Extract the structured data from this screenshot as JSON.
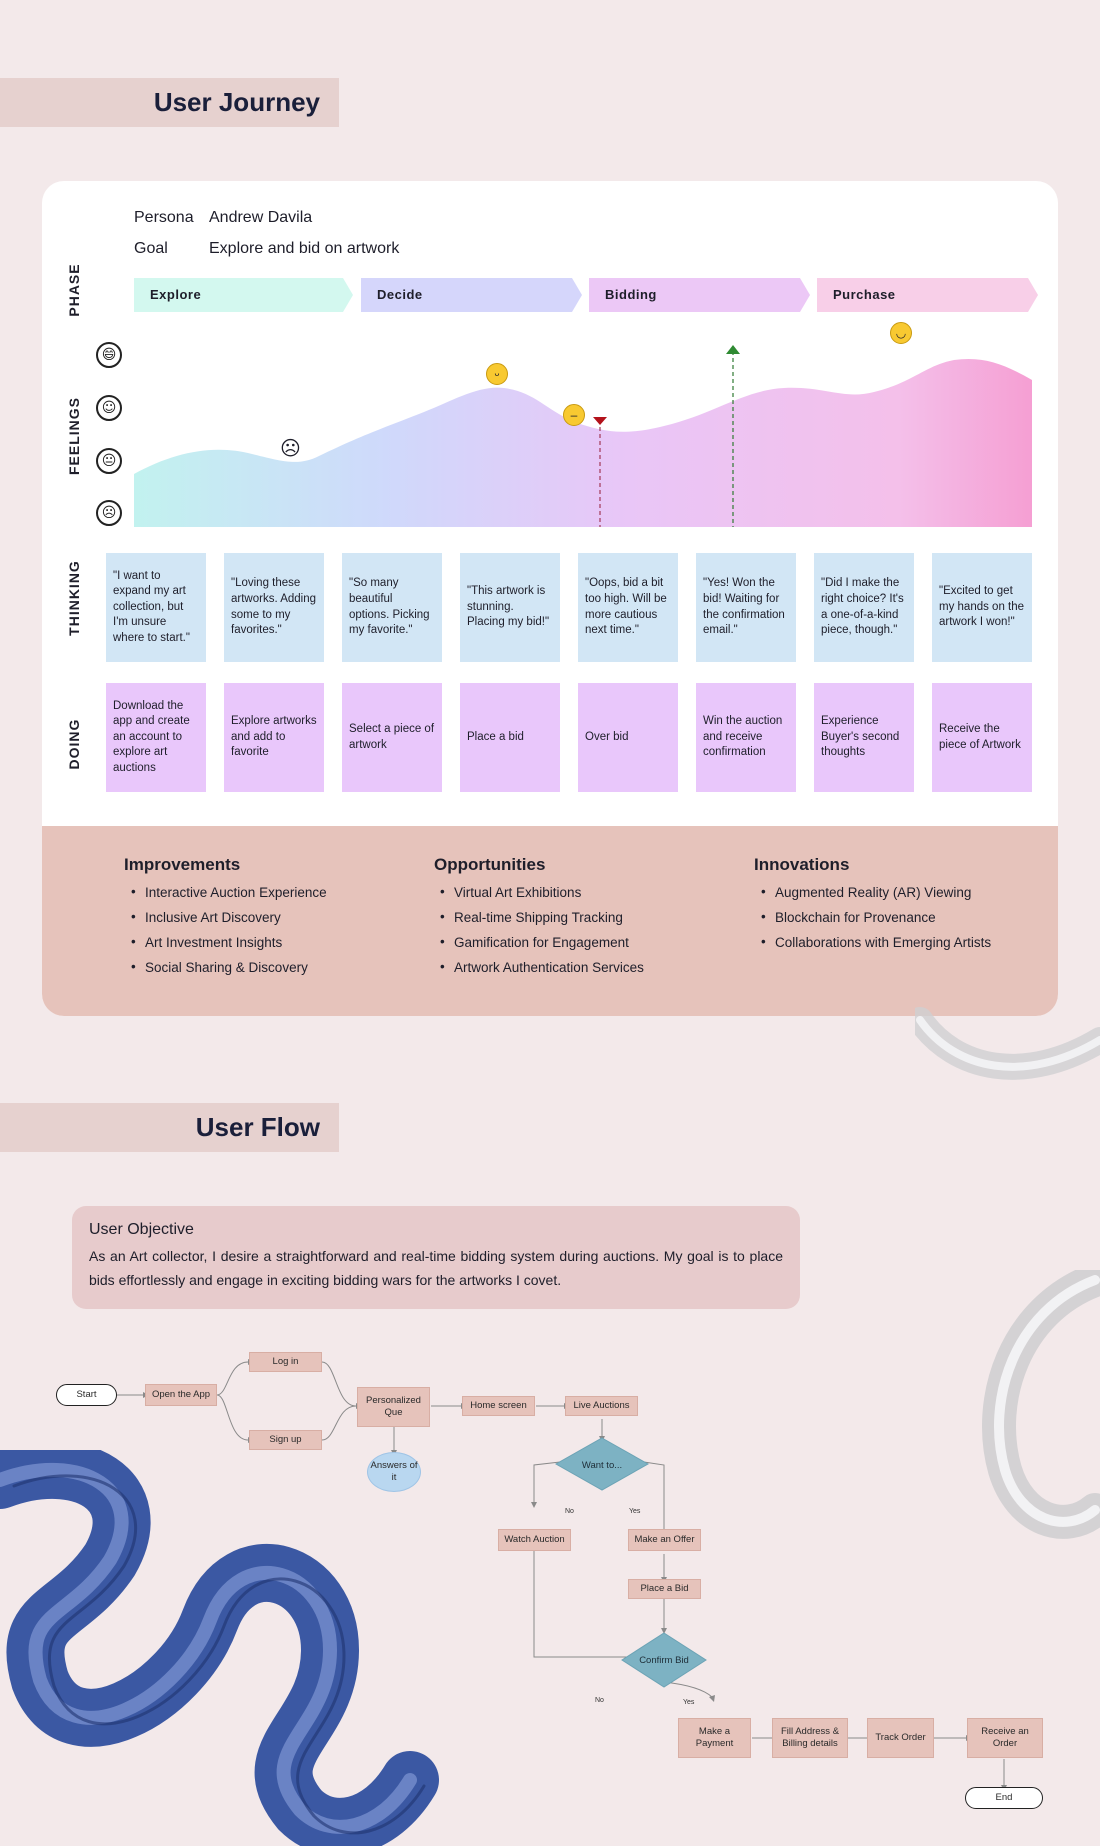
{
  "journey": {
    "title": "User Journey",
    "persona_label": "Persona",
    "persona_value": "Andrew Davila",
    "goal_label": "Goal",
    "goal_value": "Explore and bid on artwork",
    "row_labels": {
      "phase": "PHASE",
      "feelings": "FEELINGS",
      "thinking": "THINKING",
      "doing": "DOING"
    },
    "phases": [
      {
        "label": "Explore",
        "color": "#d3f8ef"
      },
      {
        "label": "Decide",
        "color": "#d5d6fb"
      },
      {
        "label": "Bidding",
        "color": "#ecc8f6"
      },
      {
        "label": "Purchase",
        "color": "#f8cfe8"
      }
    ],
    "thinking": [
      "\"I want to expand my art collection, but I'm unsure where to start.\"",
      "\"Loving these artworks. Adding some to my favorites.\"",
      "\"So many beautiful options. Picking my favorite.\"",
      "\"This artwork is stunning. Placing my bid!\"",
      "\"Oops, bid a bit too high. Will be more cautious next time.\"",
      "\"Yes! Won the bid! Waiting for the confirmation email.\"",
      "\"Did I make the right choice? It's a one-of-a-kind piece, though.\"",
      "\"Excited to get my hands on the artwork I won!\""
    ],
    "doing": [
      "Download the app and create an account to explore art auctions",
      "Explore artworks and add to favorite",
      "Select a piece of artwork",
      "Place a bid",
      "Over bid",
      "Win the auction and receive confirmation",
      "Experience Buyer's second thoughts",
      "Receive the piece of Artwork"
    ]
  },
  "ideas": {
    "improvements": {
      "title": "Improvements",
      "items": [
        "Interactive Auction Experience",
        "Inclusive Art Discovery",
        "Art Investment Insights",
        "Social Sharing & Discovery"
      ]
    },
    "opportunities": {
      "title": "Opportunities",
      "items": [
        "Virtual Art Exhibitions",
        "Real-time Shipping Tracking",
        "Gamification for Engagement",
        "Artwork Authentication Services"
      ]
    },
    "innovations": {
      "title": "Innovations",
      "items": [
        "Augmented Reality (AR) Viewing",
        "Blockchain for Provenance",
        "Collaborations with Emerging Artists"
      ]
    }
  },
  "flow": {
    "title": "User Flow",
    "objective_title": "User Objective",
    "objective_text": "As an Art collector, I desire a straightforward and real-time bidding system during auctions. My goal is to place bids effortlessly and engage in exciting bidding wars for the artworks I covet.",
    "nodes": {
      "start": "Start",
      "open_app": "Open the App",
      "login": "Log in",
      "signup": "Sign up",
      "personalized": "Personalized Que",
      "answers": "Answers of it",
      "home": "Home screen",
      "live": "Live Auctions",
      "want": "Want to...",
      "watch": "Watch Auction",
      "offer": "Make an Offer",
      "place_bid": "Place a Bid",
      "confirm": "Confirm Bid",
      "payment": "Make a Payment",
      "fill": "Fill Address & Billing details",
      "track": "Track Order",
      "receive": "Receive an Order",
      "end": "End"
    },
    "edge_labels": {
      "no": "No",
      "yes": "Yes"
    }
  }
}
